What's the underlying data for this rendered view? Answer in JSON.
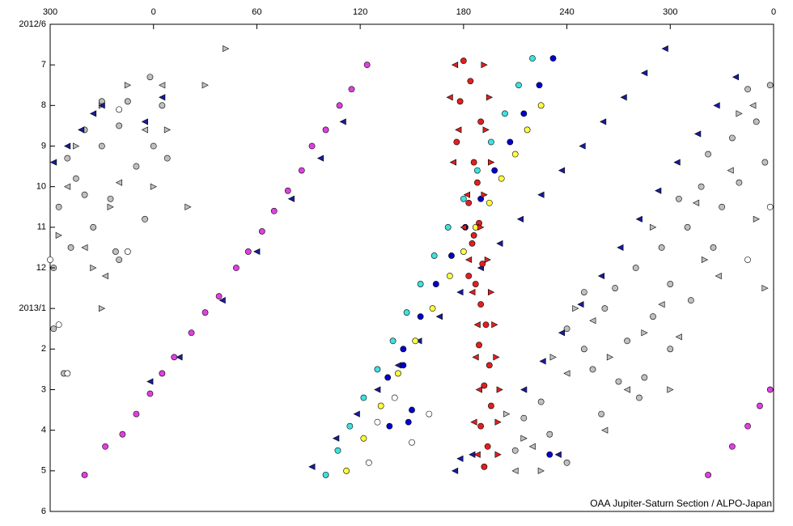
{
  "chart_data": {
    "type": "scatter",
    "annotation": "OAA Jupiter-Saturn Section / ALPO-Japan",
    "xlim": [
      -60,
      360
    ],
    "xticks": [
      {
        "value": -60,
        "label": "300"
      },
      0,
      60,
      120,
      180,
      240,
      300,
      {
        "value": 360,
        "label": "0"
      }
    ],
    "ylim": [
      0,
      12
    ],
    "y_reversed": true,
    "yticks": [
      {
        "value": 0,
        "label": "2012/6"
      },
      {
        "value": 1,
        "label": "7"
      },
      {
        "value": 2,
        "label": "8"
      },
      {
        "value": 3,
        "label": "9"
      },
      {
        "value": 4,
        "label": "10"
      },
      {
        "value": 5,
        "label": "11"
      },
      {
        "value": 6,
        "label": "12"
      },
      {
        "value": 7,
        "label": "2013/1"
      },
      {
        "value": 8,
        "label": "2"
      },
      {
        "value": 9,
        "label": "3"
      },
      {
        "value": 10,
        "label": "4"
      },
      {
        "value": 11,
        "label": "5"
      },
      {
        "value": 12,
        "label": "6"
      }
    ],
    "series": [
      {
        "color": "#c0c0c0",
        "marker": "circle",
        "x": [
          -50,
          -45,
          -40,
          -55,
          -35,
          -30,
          -20,
          -15,
          -10,
          -5,
          0,
          5,
          -25,
          -58,
          -48,
          -20,
          -40,
          -58,
          -30,
          -2,
          8,
          -52,
          -22,
          240,
          250,
          255,
          262,
          268,
          275,
          280,
          285,
          290,
          295,
          300,
          305,
          310,
          318,
          322,
          330,
          336,
          340,
          345,
          350,
          355,
          358,
          225,
          230,
          210,
          215,
          260,
          240,
          282,
          300,
          325,
          312,
          270,
          250
        ],
        "y": [
          3.3,
          3.8,
          4.2,
          4.5,
          5.0,
          3.0,
          2.5,
          1.9,
          3.5,
          4.8,
          3.0,
          2.0,
          4.3,
          6.0,
          5.5,
          5.8,
          2.6,
          7.5,
          1.9,
          1.3,
          3.3,
          8.6,
          5.6,
          7.5,
          8.0,
          8.5,
          7.0,
          6.5,
          7.8,
          6.0,
          8.7,
          7.2,
          5.5,
          6.4,
          4.3,
          5.0,
          4.0,
          3.2,
          4.5,
          2.8,
          3.9,
          1.6,
          2.4,
          3.4,
          1.5,
          9.3,
          10.1,
          10.5,
          9.7,
          9.6,
          10.8,
          9.2,
          8.0,
          5.5,
          6.8,
          8.8,
          6.6
        ]
      },
      {
        "color": "#c0c0c0",
        "marker": "triangle-right",
        "x": [
          -30,
          -25,
          -15,
          0,
          8,
          -35,
          -45,
          -55,
          20,
          42,
          30,
          245,
          265,
          285,
          300,
          320,
          340,
          350,
          355,
          290,
          215,
          225,
          205,
          232,
          -30
        ],
        "y": [
          2.0,
          4.5,
          1.5,
          4.0,
          2.6,
          6.0,
          3.0,
          5.2,
          4.5,
          0.6,
          1.5,
          7.0,
          8.2,
          7.6,
          9.0,
          5.8,
          2.2,
          4.8,
          6.5,
          5.0,
          10.2,
          11.0,
          9.6,
          8.2,
          7.0
        ]
      },
      {
        "color": "#c0c0c0",
        "marker": "triangle-left",
        "x": [
          -20,
          -5,
          -40,
          5,
          -50,
          -28,
          255,
          275,
          295,
          315,
          335,
          348,
          240,
          210,
          220,
          305,
          328,
          262
        ],
        "y": [
          3.9,
          2.6,
          5.5,
          1.5,
          4.0,
          6.2,
          7.3,
          9.0,
          6.9,
          4.4,
          3.6,
          2.0,
          8.6,
          11.0,
          10.4,
          7.7,
          6.2,
          10.0
        ]
      },
      {
        "color": "#1a1aa0",
        "marker": "triangle-left",
        "x": [
          297,
          285,
          273,
          261,
          249,
          237,
          225,
          213,
          201,
          190,
          178,
          166,
          154,
          142,
          130,
          118,
          106,
          92,
          338,
          327,
          316,
          304,
          293,
          282,
          271,
          260,
          248,
          237,
          226,
          215,
          -58,
          -50,
          -42,
          -35,
          -30,
          5,
          -5,
          110,
          97,
          80,
          60,
          40,
          15,
          -2,
          175,
          185,
          235,
          178
        ],
        "y": [
          0.6,
          1.2,
          1.8,
          2.4,
          3.0,
          3.6,
          4.2,
          4.8,
          5.4,
          6.0,
          6.6,
          7.2,
          7.8,
          8.4,
          9.0,
          9.6,
          10.2,
          10.9,
          1.3,
          2.0,
          2.7,
          3.4,
          4.1,
          4.8,
          5.5,
          6.2,
          6.9,
          7.6,
          8.3,
          9.0,
          3.4,
          3.0,
          2.6,
          2.2,
          2.0,
          1.8,
          2.4,
          2.4,
          3.3,
          4.3,
          5.6,
          6.8,
          8.2,
          8.8,
          11.0,
          10.6,
          10.6,
          10.7
        ]
      },
      {
        "color": "#0000cc",
        "marker": "circle",
        "x": [
          232,
          224,
          215,
          207,
          198,
          190,
          181,
          173,
          164,
          155,
          145,
          136,
          150,
          148,
          145,
          137,
          230
        ],
        "y": [
          0.84,
          1.5,
          2.2,
          2.9,
          3.6,
          4.3,
          5.0,
          5.7,
          6.4,
          7.2,
          8.0,
          8.7,
          9.5,
          9.8,
          8.4,
          9.9,
          10.6
        ]
      },
      {
        "color": "#40e0e0",
        "marker": "circle",
        "x": [
          220,
          212,
          204,
          196,
          188,
          180,
          171,
          163,
          155,
          147,
          139,
          130,
          122,
          114,
          107,
          100
        ],
        "y": [
          0.84,
          1.5,
          2.2,
          2.9,
          3.6,
          4.3,
          5.0,
          5.7,
          6.4,
          7.1,
          7.8,
          8.5,
          9.2,
          9.9,
          10.5,
          11.1
        ]
      },
      {
        "color": "#ffff40",
        "marker": "circle",
        "x": [
          225,
          217,
          210,
          202,
          195,
          187,
          180,
          172,
          162,
          152,
          142,
          132,
          122,
          112
        ],
        "y": [
          2.0,
          2.6,
          3.2,
          3.8,
          4.4,
          5.0,
          5.6,
          6.2,
          7.0,
          7.8,
          8.6,
          9.4,
          10.2,
          11.0
        ]
      },
      {
        "color": "#e02020",
        "marker": "circle",
        "x": [
          180,
          184,
          178,
          190,
          176,
          186,
          188,
          183,
          189,
          185,
          191,
          187,
          190,
          193,
          189,
          195,
          192,
          196,
          190,
          194,
          192,
          186,
          183
        ],
        "y": [
          0.9,
          1.4,
          1.9,
          2.4,
          2.9,
          3.4,
          3.9,
          4.4,
          4.9,
          5.4,
          5.9,
          6.4,
          6.9,
          7.4,
          7.9,
          8.4,
          8.9,
          9.4,
          9.9,
          10.4,
          10.9,
          5.2,
          6.2
        ]
      },
      {
        "color": "#e02020",
        "marker": "triangle-left",
        "x": [
          175,
          172,
          177,
          174,
          182,
          180,
          183,
          185,
          188,
          187,
          189,
          186,
          188
        ],
        "y": [
          1.0,
          1.8,
          2.6,
          3.4,
          4.2,
          5.0,
          5.8,
          6.6,
          7.4,
          8.2,
          9.0,
          9.8,
          10.6
        ]
      },
      {
        "color": "#e02020",
        "marker": "triangle-right",
        "x": [
          192,
          195,
          193,
          196,
          192,
          190,
          194,
          196,
          198,
          199,
          201,
          200,
          200
        ],
        "y": [
          1.0,
          1.8,
          2.6,
          3.4,
          4.2,
          5.0,
          5.8,
          6.6,
          7.4,
          8.2,
          9.0,
          9.8,
          10.6
        ]
      },
      {
        "color": "#e040e0",
        "marker": "circle",
        "x": [
          124,
          115,
          108,
          100,
          92,
          86,
          78,
          70,
          63,
          55,
          48,
          38,
          30,
          22,
          12,
          5,
          -2,
          -10,
          -18,
          -28,
          -40,
          358,
          352,
          345,
          336,
          322
        ],
        "y": [
          1.0,
          1.6,
          2.0,
          2.6,
          3.0,
          3.6,
          4.1,
          4.6,
          5.1,
          5.6,
          6.0,
          6.7,
          7.1,
          7.6,
          8.2,
          8.6,
          9.1,
          9.6,
          10.1,
          10.4,
          11.1,
          9.0,
          9.4,
          9.9,
          10.4,
          11.1
        ]
      },
      {
        "color": "#ffffff",
        "marker": "circle",
        "x": [
          -60,
          -55,
          -50,
          -15,
          -20,
          358,
          345,
          150,
          160,
          125,
          130,
          140
        ],
        "y": [
          5.8,
          7.4,
          8.6,
          5.6,
          2.1,
          4.5,
          5.8,
          10.3,
          9.6,
          10.8,
          9.8,
          9.2
        ]
      }
    ]
  }
}
